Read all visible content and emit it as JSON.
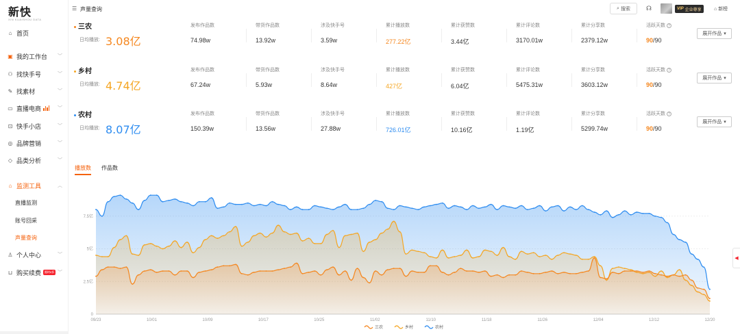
{
  "brand": {
    "name": "新快",
    "sub": "XIN KUAISHOU DATA"
  },
  "sidebar": {
    "items": [
      {
        "label": "首页",
        "icon": "home-icon"
      },
      {
        "label": "我的工作台",
        "icon": "workbench-icon"
      },
      {
        "label": "找快手号",
        "icon": "account-search-icon"
      },
      {
        "label": "找素材",
        "icon": "material-icon"
      },
      {
        "label": "直播电商",
        "icon": "live-icon"
      },
      {
        "label": "快手小店",
        "icon": "shop-icon"
      },
      {
        "label": "品牌营销",
        "icon": "brand-icon"
      },
      {
        "label": "品类分析",
        "icon": "tag-icon"
      },
      {
        "label": "监测工具",
        "icon": "monitor-icon"
      },
      {
        "label": "个人中心",
        "icon": "user-icon"
      },
      {
        "label": "购买续费",
        "icon": "cart-icon",
        "badge": "限时6折"
      }
    ],
    "subitems": [
      {
        "label": "直播监测"
      },
      {
        "label": "账号回采"
      },
      {
        "label": "声量查询"
      }
    ]
  },
  "header": {
    "breadcrumb": "声量查询",
    "search_label": "搜索",
    "vip_label": "VIP",
    "vip_text": "企业尊享",
    "newbang_label": "新榜"
  },
  "metric_labels": {
    "posts": "发布作品数",
    "goods_posts": "带货作品数",
    "accounts": "涉及快手号",
    "plays": "累计播放数",
    "likes": "累计获赞数",
    "comments": "累计评论数",
    "shares": "累计分享数",
    "active_days": "活跃天数"
  },
  "avg_label": "日均播放:",
  "expand_label": "展开作品",
  "keywords": [
    {
      "name": "三农",
      "color": "#f5871f",
      "avg": "3.08亿",
      "posts": "74.98w",
      "goods_posts": "13.92w",
      "accounts": "3.59w",
      "plays": "277.22亿",
      "likes": "3.44亿",
      "comments": "3170.01w",
      "shares": "2379.12w",
      "active": "90",
      "active_total": "/90"
    },
    {
      "name": "乡村",
      "color": "#f5a623",
      "avg": "4.74亿",
      "posts": "67.24w",
      "goods_posts": "5.93w",
      "accounts": "8.64w",
      "plays": "427亿",
      "likes": "6.04亿",
      "comments": "5475.31w",
      "shares": "3603.12w",
      "active": "90",
      "active_total": "/90"
    },
    {
      "name": "农村",
      "color": "#2d8cf0",
      "avg": "8.07亿",
      "posts": "150.39w",
      "goods_posts": "13.56w",
      "accounts": "27.88w",
      "plays": "726.01亿",
      "likes": "10.16亿",
      "comments": "1.19亿",
      "shares": "5299.74w",
      "active": "90",
      "active_total": "/90"
    }
  ],
  "tabs": [
    {
      "label": "播放数"
    },
    {
      "label": "作品数"
    }
  ],
  "chart_data": {
    "type": "area",
    "x_tick_labels": [
      "09/23",
      "10/01",
      "10/09",
      "10/17",
      "10/25",
      "11/02",
      "11/10",
      "11/18",
      "11/26",
      "12/04",
      "12/12",
      "12/20"
    ],
    "y_tick_labels": [
      "0",
      "2.5亿",
      "5亿",
      "7.5亿"
    ],
    "ylim": [
      0,
      10
    ],
    "legend_position": "bottom",
    "series": [
      {
        "name": "三农",
        "color": "#f5871f",
        "values": [
          2.9,
          3.4,
          3.6,
          3.6,
          3.5,
          3.6,
          2.3,
          3.0,
          3.3,
          3.4,
          3.2,
          3.3,
          3.3,
          3.0,
          3.3,
          3.3,
          2.8,
          3.2,
          3.3,
          3.4,
          3.6,
          3.7,
          3.7,
          3.8,
          3.1,
          3.0,
          3.2,
          3.3,
          3.3,
          3.3,
          3.4,
          3.5,
          3.6,
          3.9,
          3.1,
          3.2,
          3.3,
          3.0,
          3.4,
          3.6,
          3.0,
          3.3,
          2.6,
          3.5,
          2.8,
          2.4,
          3.3,
          3.0,
          3.4,
          3.5,
          3.5,
          2.9,
          3.3,
          3.2,
          3.2,
          3.7,
          3.7,
          3.2,
          3.0,
          3.2,
          3.5,
          3.3,
          3.3,
          3.2,
          3.3,
          2.9,
          3.0,
          2.8,
          3.0,
          3.0,
          3.3,
          3.2,
          3.1,
          3.1,
          3.2,
          3.3,
          3.1,
          3.2,
          3.1,
          3.1,
          3.2,
          3.3,
          4.3,
          2.8,
          2.7,
          3.2,
          3.1,
          3.3,
          3.3,
          3.3,
          3.2,
          3.3,
          3.1,
          3.0,
          2.9,
          3.0,
          2.9,
          3.0,
          2.6,
          2.0,
          1.9,
          1.2
        ]
      },
      {
        "name": "乡村",
        "color": "#f5a623",
        "values": [
          4.5,
          4.4,
          4.4,
          5.1,
          5.7,
          6.0,
          4.6,
          4.5,
          5.3,
          5.4,
          5.2,
          5.0,
          5.2,
          5.6,
          5.1,
          5.5,
          4.7,
          5.1,
          5.7,
          6.0,
          5.8,
          6.0,
          6.3,
          6.7,
          5.2,
          5.5,
          6.0,
          6.2,
          5.9,
          6.2,
          6.8,
          6.3,
          6.1,
          6.2,
          5.6,
          5.8,
          5.4,
          5.4,
          6.1,
          6.4,
          5.1,
          6.0,
          6.1,
          6.2,
          4.8,
          5.5,
          5.7,
          6.2,
          6.5,
          7.1,
          6.3,
          4.6,
          4.9,
          4.8,
          4.7,
          4.4,
          4.3,
          4.9,
          4.3,
          4.4,
          4.5,
          4.9,
          4.3,
          4.4,
          4.9,
          4.8,
          4.5,
          5.1,
          4.4,
          4.2,
          4.8,
          4.6,
          4.7,
          4.4,
          4.5,
          4.2,
          4.5,
          4.7,
          4.6,
          4.5,
          4.2,
          4.2,
          4.4,
          3.7,
          2.6,
          3.5,
          3.6,
          3.5,
          3.4,
          3.2,
          3.1,
          3.2,
          2.9,
          3.3,
          2.8,
          3.0,
          3.4,
          2.6,
          2.2,
          1.7,
          1.5,
          1.0
        ]
      },
      {
        "name": "农村",
        "color": "#2d8cf0",
        "values": [
          8.0,
          7.5,
          8.6,
          9.0,
          9.1,
          8.8,
          8.5,
          8.0,
          8.7,
          9.1,
          9.1,
          8.6,
          8.7,
          8.8,
          8.6,
          8.5,
          8.3,
          8.6,
          8.6,
          8.9,
          8.1,
          8.2,
          8.5,
          8.4,
          8.4,
          8.5,
          8.3,
          8.4,
          8.3,
          8.6,
          8.4,
          8.3,
          8.0,
          8.2,
          8.0,
          8.0,
          8.3,
          8.2,
          8.1,
          8.0,
          8.2,
          8.4,
          8.0,
          8.0,
          8.1,
          8.4,
          8.7,
          8.6,
          8.1,
          8.0,
          8.3,
          8.2,
          8.1,
          8.0,
          8.2,
          8.3,
          8.4,
          8.5,
          8.1,
          8.3,
          8.2,
          8.0,
          8.3,
          8.1,
          8.2,
          8.4,
          8.0,
          8.3,
          8.2,
          8.1,
          8.3,
          8.0,
          8.1,
          8.3,
          7.9,
          8.2,
          8.3,
          7.9,
          8.2,
          8.0,
          8.3,
          8.0,
          7.8,
          7.6,
          7.9,
          7.4,
          7.6,
          7.9,
          7.6,
          7.8,
          7.7,
          7.7,
          7.5,
          7.4,
          7.0,
          6.1,
          5.7,
          5.5,
          4.6,
          4.2,
          3.6,
          1.9
        ]
      }
    ]
  }
}
